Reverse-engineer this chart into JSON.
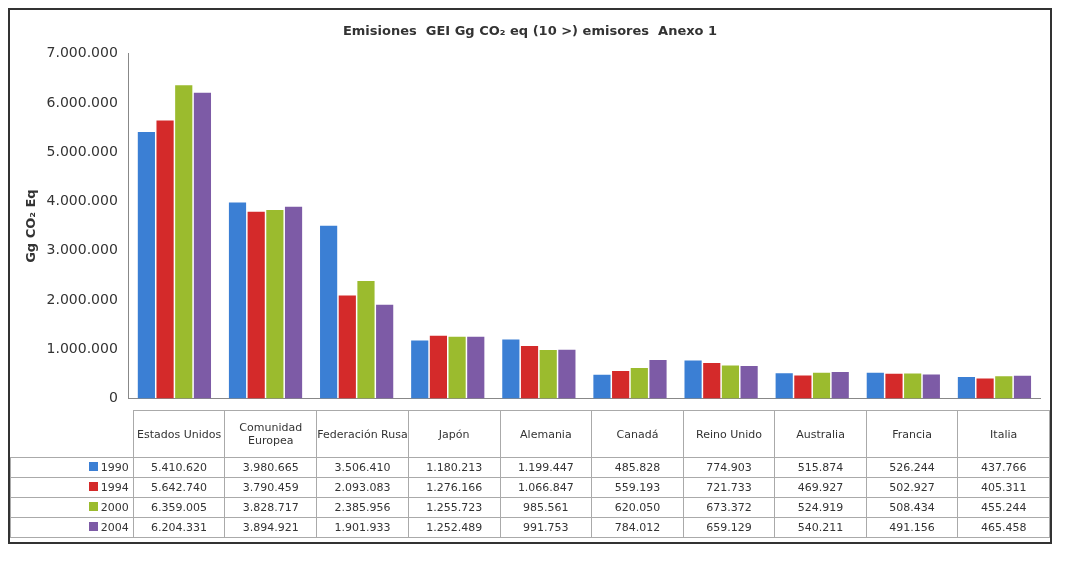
{
  "chart_data": {
    "type": "bar",
    "title": "Emisiones  GEI Gg CO₂ eq (10 >) emisores  Anexo 1",
    "ylabel": "Gg CO₂ Eq",
    "categories": [
      "Estados Unidos",
      "Comunidad Europea",
      "Federación Rusa",
      "Japón",
      "Alemania",
      "Canadá",
      "Reino Unido",
      "Australia",
      "Francia",
      "Italia"
    ],
    "series": [
      {
        "name": "1990",
        "color": "#3b7fd4",
        "values": [
          5410620,
          3980665,
          3506410,
          1180213,
          1199447,
          485828,
          774903,
          515874,
          526244,
          437766
        ],
        "value_labels": [
          "5.410.620",
          "3.980.665",
          "3.506.410",
          "1.180.213",
          "1.199.447",
          "485.828",
          "774.903",
          "515.874",
          "526.244",
          "437.766"
        ]
      },
      {
        "name": "1994",
        "color": "#d42a2a",
        "values": [
          5642740,
          3790459,
          2093083,
          1276166,
          1066847,
          559193,
          721733,
          469927,
          502927,
          405311
        ],
        "value_labels": [
          "5.642.740",
          "3.790.459",
          "2.093.083",
          "1.276.166",
          "1.066.847",
          "559.193",
          "721.733",
          "469.927",
          "502.927",
          "405.311"
        ]
      },
      {
        "name": "2000",
        "color": "#9bbb2e",
        "values": [
          6359005,
          3828717,
          2385956,
          1255723,
          985561,
          620050,
          673372,
          524919,
          508434,
          455244
        ],
        "value_labels": [
          "6.359.005",
          "3.828.717",
          "2.385.956",
          "1.255.723",
          "985.561",
          "620.050",
          "673.372",
          "524.919",
          "508.434",
          "455.244"
        ]
      },
      {
        "name": "2004",
        "color": "#7d5ba6",
        "values": [
          6204331,
          3894921,
          1901933,
          1252489,
          991753,
          784012,
          659129,
          540211,
          491156,
          465458
        ],
        "value_labels": [
          "6.204.331",
          "3.894.921",
          "1.901.933",
          "1.252.489",
          "991.753",
          "784.012",
          "659.129",
          "540.211",
          "491.156",
          "465.458"
        ]
      }
    ],
    "ylim": [
      0,
      7000000
    ],
    "yticks": [
      0,
      {
        "value": 1000000,
        "label": "1.000.000"
      },
      {
        "value": 2000000,
        "label": "2.000.000"
      },
      {
        "value": 3000000,
        "label": "3.000.000"
      },
      {
        "value": 4000000,
        "label": "4.000.000"
      },
      {
        "value": 5000000,
        "label": "5.000.000"
      },
      {
        "value": 6000000,
        "label": "6.000.000"
      },
      {
        "value": 7000000,
        "label": "7.000.000"
      }
    ],
    "grid": false,
    "legend": "bottom"
  }
}
